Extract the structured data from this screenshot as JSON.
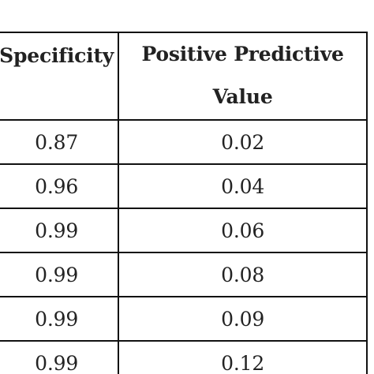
{
  "table": {
    "headers": [
      "Specificity",
      "Positive Predictive Value"
    ],
    "rows": [
      [
        "0.87",
        "0.02"
      ],
      [
        "0.96",
        "0.04"
      ],
      [
        "0.99",
        "0.06"
      ],
      [
        "0.99",
        "0.08"
      ],
      [
        "0.99",
        "0.09"
      ],
      [
        "0.99",
        "0.12"
      ]
    ]
  },
  "chart_data": {
    "type": "table",
    "columns": [
      "Specificity",
      "Positive Predictive Value"
    ],
    "rows": [
      [
        0.87,
        0.02
      ],
      [
        0.96,
        0.04
      ],
      [
        0.99,
        0.06
      ],
      [
        0.99,
        0.08
      ],
      [
        0.99,
        0.09
      ],
      [
        0.99,
        0.12
      ]
    ]
  }
}
